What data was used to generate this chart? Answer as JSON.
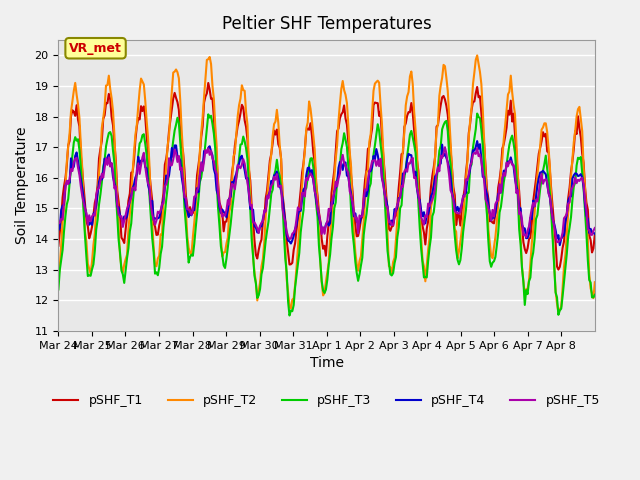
{
  "title": "Peltier SHF Temperatures",
  "xlabel": "Time",
  "ylabel": "Soil Temperature",
  "ylim": [
    11.0,
    20.5
  ],
  "yticks": [
    11.0,
    12.0,
    13.0,
    14.0,
    15.0,
    16.0,
    17.0,
    18.0,
    19.0,
    20.0
  ],
  "xtick_positions": [
    0,
    1,
    2,
    3,
    4,
    5,
    6,
    7,
    8,
    9,
    10,
    11,
    12,
    13,
    14,
    15
  ],
  "xtick_labels": [
    "Mar 24",
    "Mar 25",
    "Mar 26",
    "Mar 27",
    "Mar 28",
    "Mar 29",
    "Mar 30",
    "Mar 31",
    "Apr 1",
    "Apr 2",
    "Apr 3",
    "Apr 4",
    "Apr 5",
    "Apr 6",
    "Apr 7",
    "Apr 8"
  ],
  "series_colors": {
    "pSHF_T1": "#cc0000",
    "pSHF_T2": "#ff8800",
    "pSHF_T3": "#00cc00",
    "pSHF_T4": "#0000cc",
    "pSHF_T5": "#aa00aa"
  },
  "series_names": [
    "pSHF_T1",
    "pSHF_T2",
    "pSHF_T3",
    "pSHF_T4",
    "pSHF_T5"
  ],
  "fig_bg_color": "#f0f0f0",
  "plot_bg_color": "#e8e8e8",
  "annotation_text": "VR_met",
  "annotation_bg": "#ffff99",
  "annotation_border": "#888800",
  "grid_color": "#ffffff",
  "linewidth": 1.5
}
